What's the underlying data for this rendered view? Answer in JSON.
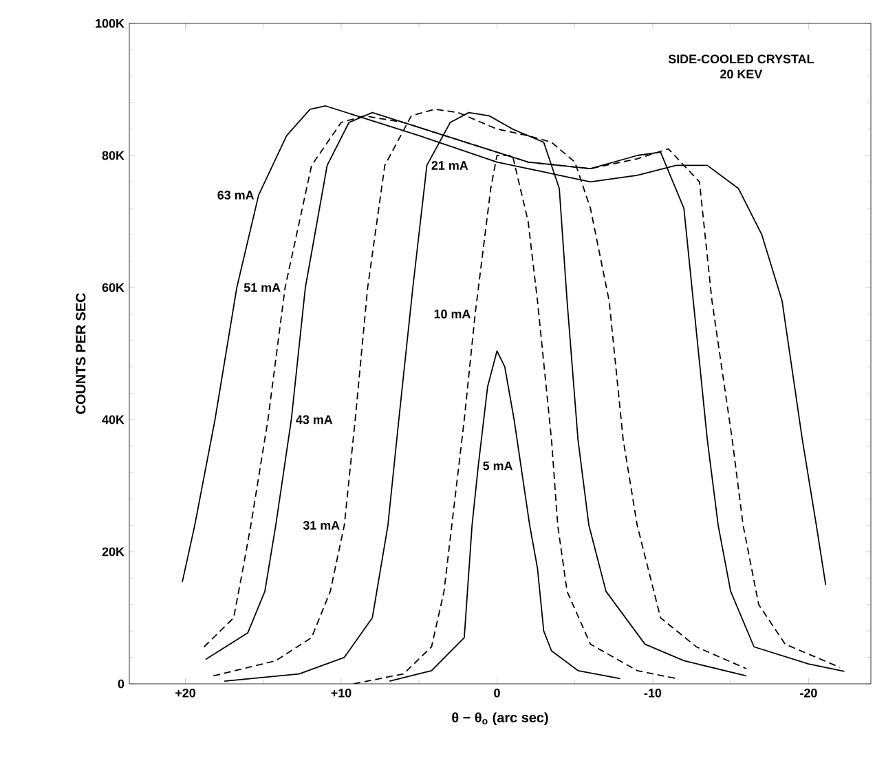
{
  "chart_data": {
    "type": "line",
    "title": "SIDE-COOLED CRYSTAL",
    "subtitle": "20 KEV",
    "xlabel": "θ − θ$_{o}$ (arc sec)",
    "ylabel": "COUNTS PER SEC",
    "xlim": [
      23.6,
      -24
    ],
    "ylim": [
      0,
      100000
    ],
    "xticks": [
      {
        "value": 20,
        "label": "+20"
      },
      {
        "value": 10,
        "label": "+10"
      },
      0,
      -10,
      -20
    ],
    "yticks": [
      0,
      {
        "value": 20000,
        "label": "20K"
      },
      {
        "value": 40000,
        "label": "40K"
      },
      {
        "value": 60000,
        "label": "60K"
      },
      {
        "value": 80000,
        "label": "80K"
      },
      {
        "value": 100000,
        "label": "100K"
      }
    ],
    "series": [
      {
        "name": "63 mA",
        "color": "#000000",
        "line_style": "solid",
        "x": [
          20.2,
          19.4,
          18.1,
          16.7,
          15.3,
          13.5,
          12,
          11,
          9,
          5,
          0,
          -3,
          -6,
          -9,
          -11.5,
          -13.5,
          -15.5,
          -17,
          -18.3,
          -19.6,
          -20.5,
          -21.1
        ],
        "values": [
          15400,
          24000,
          40000,
          60000,
          74000,
          83000,
          87000,
          87500,
          86000,
          83000,
          79000,
          77500,
          76000,
          77000,
          78500,
          78500,
          75000,
          68000,
          58000,
          37000,
          24000,
          15000
        ]
      },
      {
        "name": "51 mA",
        "color": "#000000",
        "line_style": "dashed",
        "x": [
          18.8,
          16.9,
          16.3,
          15.8,
          14.7,
          13.6,
          11.9,
          10,
          8.5,
          6,
          2,
          -2,
          -6,
          -9,
          -11,
          -13,
          -13.8,
          -15.1,
          -15.8,
          -16.8,
          -18.5,
          -22
        ],
        "values": [
          5600,
          10000,
          17500,
          24000,
          40000,
          60000,
          78500,
          85000,
          86000,
          85000,
          82000,
          79000,
          78000,
          79500,
          81000,
          76000,
          58000,
          37000,
          24000,
          12000,
          6000,
          2500
        ]
      },
      {
        "name": "43 mA",
        "color": "#000000",
        "line_style": "solid",
        "x": [
          18.7,
          16,
          14.9,
          14.2,
          13.2,
          12.3,
          10.9,
          9.5,
          8,
          6,
          2,
          -2,
          -6,
          -9,
          -10.5,
          -12,
          -12.6,
          -13.5,
          -14.2,
          -15,
          -16.5,
          -20,
          -22.3
        ],
        "values": [
          3700,
          7700,
          14000,
          24000,
          40000,
          60000,
          78500,
          85000,
          86500,
          85000,
          82000,
          79000,
          78000,
          80000,
          80500,
          72000,
          58000,
          37000,
          24000,
          14000,
          5600,
          3000,
          1900
        ]
      },
      {
        "name": "31 mA",
        "color": "#000000",
        "line_style": "dashed",
        "x": [
          18.2,
          14.2,
          11.9,
          10.7,
          9.8,
          9.1,
          8.3,
          7.2,
          5.5,
          4,
          2.5,
          0,
          -2,
          -3.5,
          -5,
          -6,
          -7.2,
          -8.1,
          -9,
          -10.5,
          -12.8,
          -16
        ],
        "values": [
          1200,
          3500,
          7000,
          14000,
          24000,
          40000,
          60000,
          78500,
          86000,
          87000,
          86500,
          84000,
          83000,
          82000,
          79000,
          72000,
          58000,
          37000,
          24000,
          10000,
          5600,
          2300
        ]
      },
      {
        "name": "21 mA",
        "color": "#000000",
        "line_style": "solid",
        "x": [
          17.5,
          12.7,
          9.8,
          8,
          7,
          6.3,
          5.4,
          4.5,
          3,
          1.8,
          0.5,
          -1,
          -3,
          -4,
          -4.5,
          -5.2,
          -5.9,
          -7,
          -9.5,
          -12,
          -16
        ],
        "values": [
          400,
          1500,
          4000,
          10000,
          24000,
          40000,
          60000,
          78500,
          85000,
          86500,
          86000,
          84000,
          82000,
          75000,
          58000,
          37000,
          24000,
          14000,
          6000,
          3500,
          1200
        ]
      },
      {
        "name": "10 mA",
        "color": "#000000",
        "line_style": "dashed",
        "x": [
          9.2,
          6,
          4.2,
          3.4,
          2.9,
          2.1,
          1.4,
          0.4,
          0,
          -1,
          -2,
          -2.6,
          -3.5,
          -3.9,
          -4.5,
          -6,
          -9,
          -11.5
        ],
        "values": [
          0,
          1500,
          5600,
          14000,
          24000,
          40000,
          56000,
          75000,
          80000,
          80000,
          70000,
          58000,
          37000,
          24000,
          14000,
          6000,
          2000,
          800
        ]
      },
      {
        "name": "5 mA",
        "color": "#000000",
        "line_style": "solid",
        "x": [
          6.9,
          4.2,
          2.1,
          1.6,
          1.2,
          0.6,
          0,
          -0.5,
          -1.1,
          -2.1,
          -2.6,
          -3,
          -3.5,
          -5.2,
          -7.9
        ],
        "values": [
          400,
          2000,
          7000,
          24000,
          33000,
          45000,
          50400,
          48000,
          40000,
          24000,
          17500,
          8000,
          5000,
          2000,
          800
        ]
      }
    ]
  }
}
